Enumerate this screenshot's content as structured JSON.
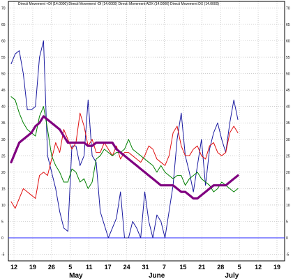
{
  "chart_data": {
    "type": "line",
    "title": "Directi Movement +DI (14.0000) Directi Movement -DI (14.0000) Directi Movement ADX (14.0000) Directi Movement DX (14.0000)",
    "xlabel": "",
    "ylabel": "",
    "ylim": [
      -7,
      72
    ],
    "grid": true,
    "y_ticks": [
      -5,
      0,
      5,
      10,
      15,
      20,
      25,
      30,
      35,
      40,
      45,
      50,
      55,
      60,
      65,
      70
    ],
    "x_tick_labels": [
      "12",
      "19",
      "26",
      "5",
      "11",
      "17",
      "24",
      "31",
      "7",
      "15",
      "21",
      "28",
      "5",
      "12",
      "19"
    ],
    "month_labels": [
      "May",
      "June",
      "July"
    ],
    "reference_line": 0,
    "series": [
      {
        "color": "#1a1aa0",
        "values": [
          53,
          56,
          57,
          50,
          39,
          39,
          40,
          55,
          60,
          25,
          20,
          15,
          8,
          3,
          2,
          28,
          28,
          22,
          25,
          42,
          25,
          23,
          8,
          4,
          0,
          3,
          6,
          14,
          0,
          0,
          5,
          3,
          0,
          14,
          5,
          0,
          7,
          5,
          0,
          8,
          16,
          30,
          38,
          25,
          20,
          14,
          22,
          30,
          16,
          27,
          32,
          35,
          30,
          26,
          35,
          42,
          36
        ]
      },
      {
        "color": "#e01010",
        "values": [
          11,
          9,
          12,
          15,
          14,
          13,
          12,
          19,
          20,
          19,
          24,
          29,
          26,
          33,
          30,
          27,
          29,
          38,
          34,
          28,
          30,
          26,
          26,
          29,
          27,
          25,
          28,
          24,
          26,
          26,
          25,
          24,
          23,
          25,
          28,
          27,
          24,
          23,
          22,
          25,
          32,
          34,
          28,
          25,
          25,
          27,
          28,
          25,
          24,
          28,
          29,
          26,
          25,
          26,
          32,
          34,
          32
        ]
      },
      {
        "color": "#008000",
        "values": [
          43,
          42,
          38,
          35,
          33,
          32,
          31,
          37,
          40,
          33,
          25,
          22,
          20,
          17,
          17,
          21,
          20,
          17,
          18,
          15,
          17,
          24,
          25,
          27,
          26,
          25,
          26,
          26,
          27,
          30,
          27,
          26,
          25,
          24,
          23,
          22,
          20,
          22,
          20,
          19,
          18,
          19,
          19,
          16,
          18,
          19,
          20,
          18,
          17,
          16,
          14,
          15,
          17,
          16,
          15,
          14,
          15
        ]
      },
      {
        "color": "#800080",
        "values": [
          23,
          26,
          29,
          30,
          31,
          32,
          34,
          35,
          37,
          36,
          35,
          34,
          33,
          31,
          29,
          29,
          29,
          29,
          29,
          28,
          28,
          29,
          29,
          29,
          29,
          29,
          27,
          26,
          25,
          24,
          23,
          22,
          21,
          20,
          19,
          18,
          17,
          16,
          16,
          16,
          16,
          15,
          14,
          14,
          13,
          12,
          12,
          13,
          14,
          15,
          16,
          16,
          16,
          16,
          17,
          18,
          19
        ]
      }
    ]
  }
}
